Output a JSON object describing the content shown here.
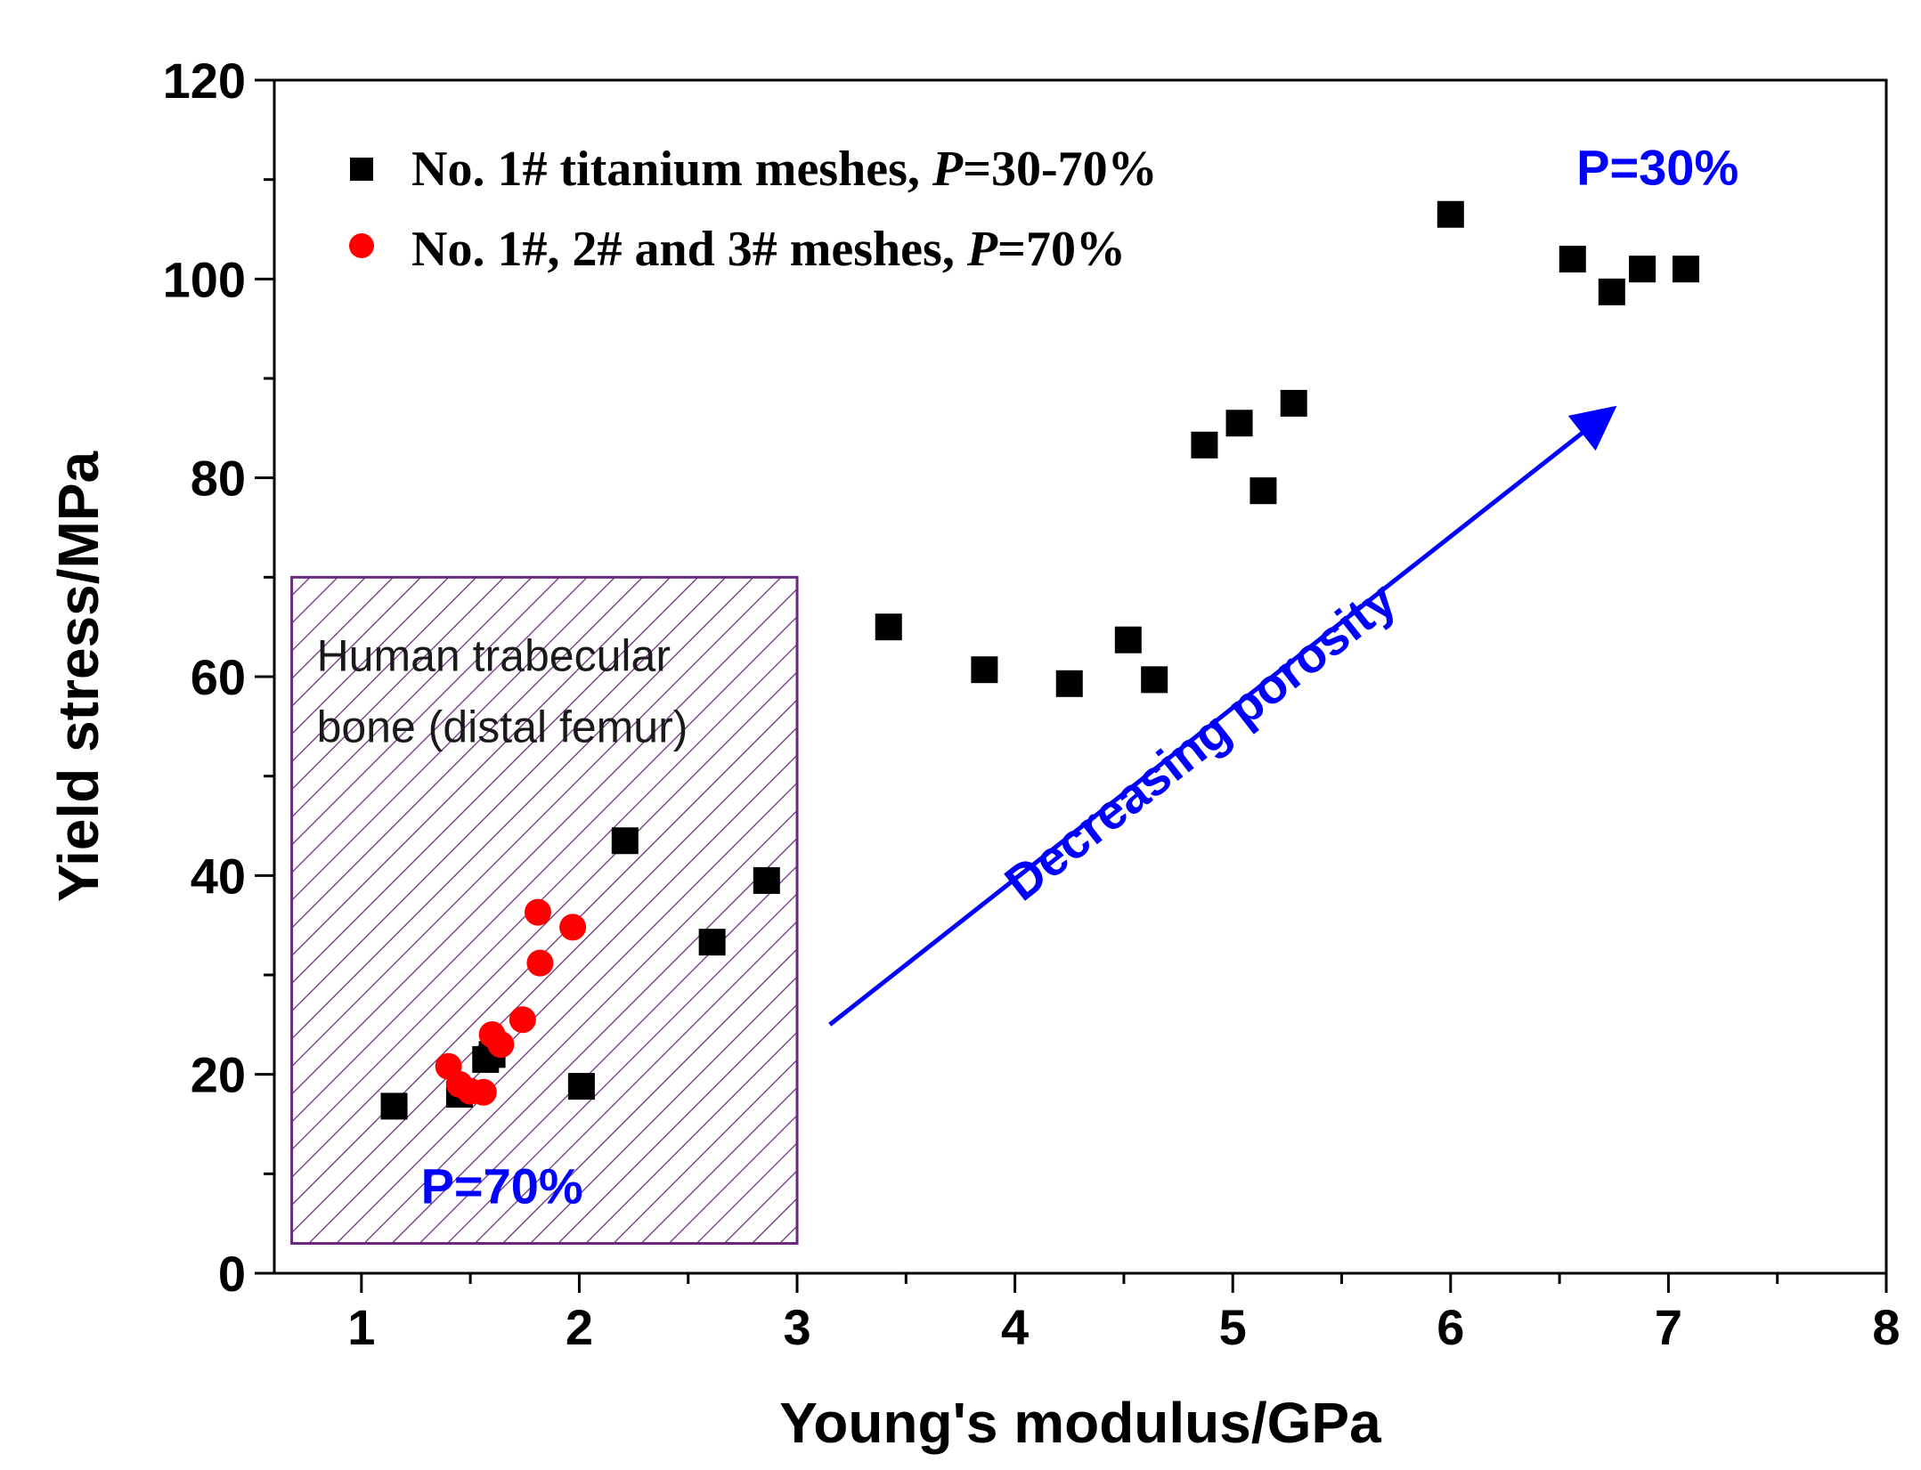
{
  "colors": {
    "axis": "#000000",
    "square_series": "#000000",
    "circle_series": "#ff0000",
    "annotation": "#0000ff",
    "region": "#6a2a7a"
  },
  "chart_data": {
    "type": "scatter",
    "title": "",
    "xlabel": "Young's modulus/GPa",
    "ylabel": "Yield stress/MPa",
    "xlim": [
      0.6,
      8
    ],
    "ylim": [
      0,
      120
    ],
    "xticks": [
      1,
      2,
      3,
      4,
      5,
      6,
      7,
      8
    ],
    "yticks": [
      0,
      20,
      40,
      60,
      80,
      100,
      120
    ],
    "grid": false,
    "legend_position": "top-left",
    "series": [
      {
        "name": "No. 1# titanium meshes, P=30-70%",
        "legend_prefix": "No. 1# titanium meshes, ",
        "legend_italic": "P",
        "legend_suffix": "=30-70%",
        "marker": "square",
        "points": [
          [
            1.15,
            16.8
          ],
          [
            1.45,
            18.0
          ],
          [
            1.57,
            21.5
          ],
          [
            1.6,
            22.0
          ],
          [
            2.01,
            18.8
          ],
          [
            2.21,
            43.5
          ],
          [
            2.61,
            33.3
          ],
          [
            2.86,
            39.5
          ],
          [
            3.42,
            65.0
          ],
          [
            3.86,
            60.7
          ],
          [
            4.25,
            59.3
          ],
          [
            4.52,
            63.7
          ],
          [
            4.64,
            59.7
          ],
          [
            4.87,
            83.3
          ],
          [
            5.03,
            85.5
          ],
          [
            5.14,
            78.7
          ],
          [
            5.28,
            87.5
          ],
          [
            6.0,
            106.5
          ],
          [
            6.56,
            102.0
          ],
          [
            6.74,
            98.7
          ],
          [
            6.88,
            101.0
          ],
          [
            7.08,
            101.0
          ]
        ]
      },
      {
        "name": "No. 1#, 2# and 3# meshes, P=70%",
        "legend_prefix": "No. 1#, 2# and 3# meshes, ",
        "legend_italic": "P",
        "legend_suffix": "=70%",
        "marker": "circle",
        "points": [
          [
            1.4,
            20.8
          ],
          [
            1.45,
            19.0
          ],
          [
            1.5,
            18.3
          ],
          [
            1.56,
            18.2
          ],
          [
            1.6,
            24.0
          ],
          [
            1.64,
            23.0
          ],
          [
            1.74,
            25.5
          ],
          [
            1.81,
            36.3
          ],
          [
            1.82,
            31.2
          ],
          [
            1.97,
            34.8
          ]
        ]
      }
    ],
    "annotations": {
      "region": {
        "label_line1": "Human trabecular",
        "label_line2": "bone (distal femur)",
        "x_range": [
          0.68,
          3.0
        ],
        "y_range": [
          3,
          70
        ]
      },
      "region_value": "P=70%",
      "arrow": {
        "label": "Decreasing porosity",
        "from": [
          3.15,
          25
        ],
        "to": [
          6.78,
          87.5
        ]
      },
      "end_value": "P=30%"
    }
  }
}
